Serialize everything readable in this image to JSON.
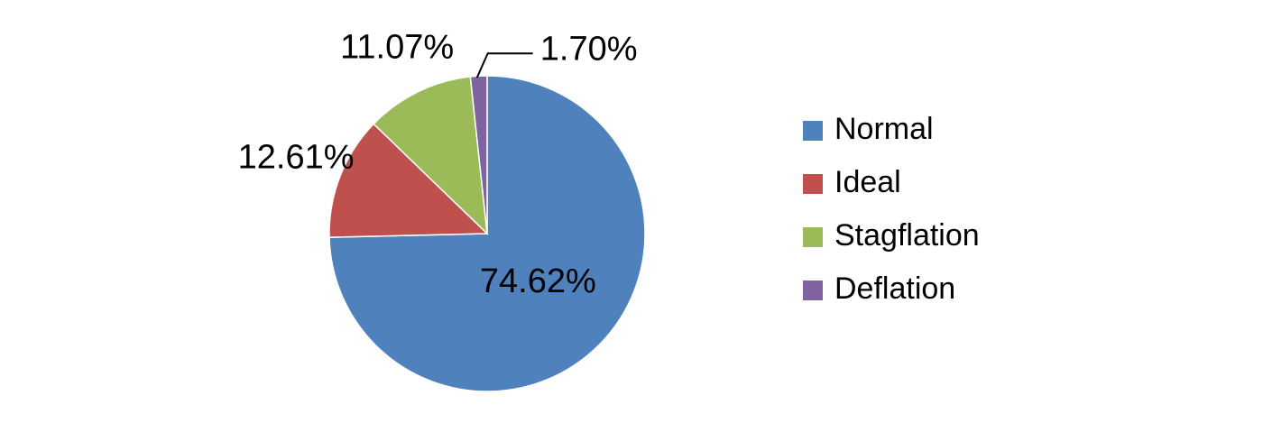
{
  "chart_data": {
    "type": "pie",
    "categories": [
      "Normal",
      "Ideal",
      "Stagflation",
      "Deflation"
    ],
    "values": [
      74.62,
      12.61,
      11.07,
      1.7
    ],
    "value_labels": [
      "74.62%",
      "12.61%",
      "11.07%",
      "1.70%"
    ],
    "colors": [
      "#4f81bd",
      "#c0504d",
      "#9bbb59",
      "#8064a2"
    ],
    "legend": "right"
  }
}
